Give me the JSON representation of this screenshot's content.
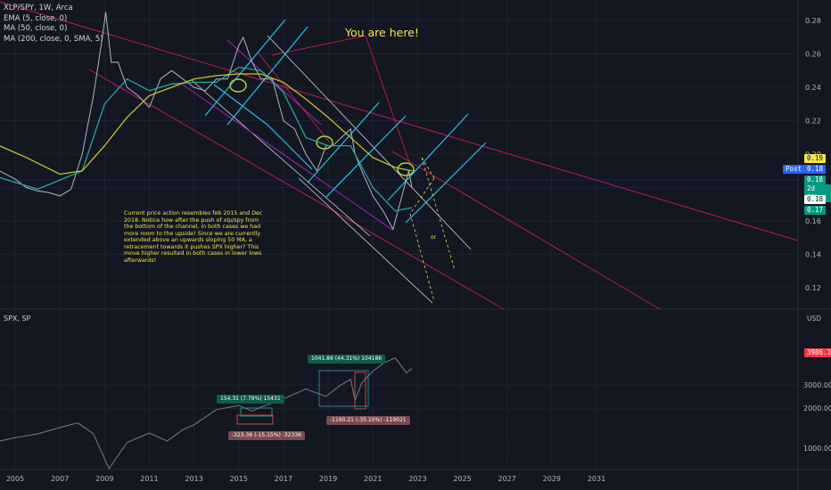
{
  "top_legend": {
    "symbol": "XLP/SPY, 1W, Arca",
    "indicators": [
      "EMA (5, close, 0)",
      "MA (50, close, 0)",
      "MA (200, close, 0, SMA, 5)"
    ]
  },
  "headline": "You are here!",
  "note": "Current price action resembles feb 2015 and Dec 2018. Notice how after the push of xlp/spy from the bottom of the channel, in both cases we had more room to the upside! Since we are currently extended above an upwards sloping 50 MA, a retracement towards it pushes SPX higher? This move higher resulted in both cases in lower lows afterwards!",
  "or_label": "or",
  "price_labels": [
    {
      "text": "0.19",
      "bg": "#f7e64a",
      "fg": "#131722"
    },
    {
      "text": "Post",
      "bg": "#2962ff",
      "fg": "#ffffff"
    },
    {
      "text": "0.18",
      "bg": "#2962ff",
      "fg": "#ffffff"
    },
    {
      "text": "0.18",
      "bg": "#089981",
      "fg": "#ffffff"
    },
    {
      "text": "2d 22h",
      "bg": "#089981",
      "fg": "#ffffff"
    },
    {
      "text": "0.18",
      "bg": "#ffffff",
      "fg": "#131722"
    },
    {
      "text": "0.17",
      "bg": "#089981",
      "fg": "#ffffff"
    }
  ],
  "bottom_legend": "SPX, SP",
  "bottom_currency": "USD",
  "bottom_price_label": {
    "text": "3986.15",
    "bg": "#f23645",
    "fg": "#ffffff"
  },
  "measurements": [
    {
      "text": "154.31 (7.79%) 15431",
      "bg": "#0d5c4f"
    },
    {
      "text": "-323.36 (-15.15%) -32336",
      "bg": "#7a4a4e"
    },
    {
      "text": "1041.86 (44.31%) 104186",
      "bg": "#0d5c4f"
    },
    {
      "text": "-1190.21 (-35.10%) -119021",
      "bg": "#7a4a4e"
    }
  ],
  "chart_data": [
    {
      "type": "line",
      "title": "XLP/SPY, 1W, Arca",
      "y_ticks": [
        0.12,
        0.14,
        0.16,
        0.18,
        0.2,
        0.22,
        0.24,
        0.26,
        0.28
      ],
      "ylim": [
        0.11,
        0.29
      ],
      "x_ticks": [
        "2005",
        "2007",
        "2009",
        "2011",
        "2013",
        "2015",
        "2017",
        "2019",
        "2021",
        "2023",
        "2025",
        "2027",
        "2029",
        "2031"
      ],
      "series": [
        {
          "name": "XLP/SPY",
          "color": "#b2b5be",
          "x": [
            2004.3,
            2005,
            2005.5,
            2006,
            2006.5,
            2007,
            2007.5,
            2008,
            2008.5,
            2008.9,
            2009.05,
            2009.3,
            2009.6,
            2010,
            2010.5,
            2011,
            2011.5,
            2012,
            2012.5,
            2013,
            2013.5,
            2014,
            2014.5,
            2015,
            2015.2,
            2015.6,
            2016,
            2016.5,
            2017,
            2017.5,
            2018,
            2018.5,
            2018.9,
            2019.2,
            2019.6,
            2020,
            2020.2,
            2020.5,
            2021,
            2021.5,
            2021.9,
            2022.2,
            2022.5,
            2022.6,
            2022.75
          ],
          "values": [
            0.19,
            0.185,
            0.18,
            0.178,
            0.177,
            0.175,
            0.179,
            0.2,
            0.235,
            0.27,
            0.285,
            0.255,
            0.255,
            0.24,
            0.235,
            0.228,
            0.245,
            0.25,
            0.245,
            0.24,
            0.238,
            0.245,
            0.245,
            0.265,
            0.27,
            0.255,
            0.245,
            0.245,
            0.22,
            0.215,
            0.2,
            0.19,
            0.205,
            0.205,
            0.21,
            0.215,
            0.2,
            0.19,
            0.175,
            0.165,
            0.155,
            0.17,
            0.185,
            0.19,
            0.18
          ]
        },
        {
          "name": "MA 50",
          "color": "#26a69a",
          "x": [
            2004.3,
            2006,
            2008,
            2009,
            2010,
            2011,
            2012,
            2013,
            2014,
            2015,
            2016,
            2017,
            2018,
            2019,
            2020,
            2021,
            2022,
            2022.75
          ],
          "values": [
            0.186,
            0.179,
            0.19,
            0.23,
            0.245,
            0.238,
            0.242,
            0.243,
            0.243,
            0.252,
            0.25,
            0.237,
            0.21,
            0.205,
            0.205,
            0.18,
            0.166,
            0.168
          ]
        },
        {
          "name": "MA 200",
          "color": "#c7c22d",
          "x": [
            2004.3,
            2005.5,
            2007,
            2008,
            2009,
            2010,
            2011,
            2012,
            2013,
            2014,
            2015,
            2016,
            2017,
            2018,
            2019,
            2020,
            2021,
            2022,
            2022.75
          ],
          "values": [
            0.205,
            0.198,
            0.188,
            0.19,
            0.205,
            0.222,
            0.235,
            0.24,
            0.245,
            0.247,
            0.248,
            0.248,
            0.243,
            0.233,
            0.222,
            0.21,
            0.198,
            0.192,
            0.19
          ]
        }
      ]
    },
    {
      "type": "line",
      "title": "SPX, SP",
      "y_ticks": [
        1000,
        2000,
        3000
      ],
      "ylim": [
        600,
        5100
      ],
      "x_ticks": [
        "2005",
        "2007",
        "2009",
        "2011",
        "2013",
        "2015",
        "2017",
        "2019",
        "2021",
        "2023",
        "2025",
        "2027",
        "2029",
        "2031"
      ],
      "series": [
        {
          "name": "SPX",
          "color": "#787b86",
          "x": [
            2004.3,
            2005,
            2006,
            2007,
            2007.8,
            2008.5,
            2009.2,
            2010,
            2011,
            2011.8,
            2012.5,
            2013,
            2014,
            2015,
            2015.6,
            2016,
            2017,
            2018,
            2018.9,
            2019.5,
            2020,
            2020.2,
            2020.5,
            2021,
            2021.5,
            2022,
            2022.5,
            2022.75
          ],
          "values": [
            1130,
            1200,
            1280,
            1430,
            1550,
            1280,
            700,
            1100,
            1300,
            1130,
            1380,
            1500,
            1950,
            2100,
            1900,
            2040,
            2350,
            2800,
            2450,
            2950,
            3300,
            2300,
            3100,
            3800,
            4400,
            4790,
            3700,
            3986
          ]
        }
      ]
    }
  ]
}
